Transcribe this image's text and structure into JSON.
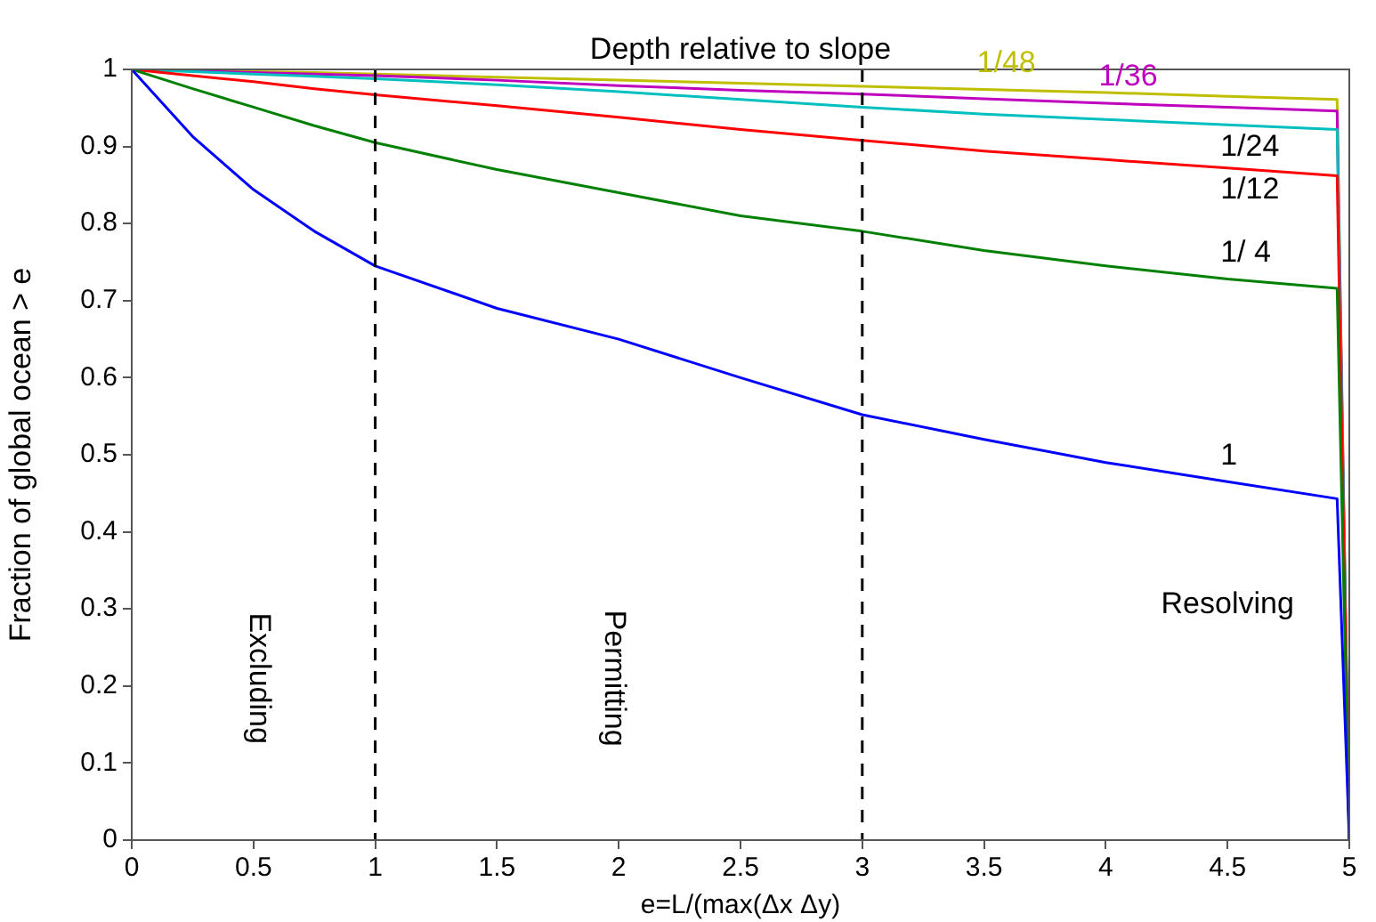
{
  "chart_data": {
    "type": "line",
    "title": "Depth relative to slope",
    "xlabel": "e=L/(max(Δx Δy)",
    "ylabel": "Fraction of global ocean > e",
    "x": [
      0,
      0.25,
      0.5,
      0.75,
      1,
      1.5,
      2,
      2.5,
      3,
      3.5,
      4,
      4.5,
      4.95,
      5
    ],
    "series": [
      {
        "name": "1",
        "color": "#0000ff",
        "values": [
          1,
          0.913,
          0.844,
          0.79,
          0.745,
          0.69,
          0.65,
          0.6,
          0.552,
          0.52,
          0.49,
          0.465,
          0.443,
          0
        ]
      },
      {
        "name": "1/ 4",
        "color": "#008000",
        "values": [
          1,
          0.975,
          0.951,
          0.927,
          0.905,
          0.87,
          0.84,
          0.81,
          0.79,
          0.765,
          0.745,
          0.728,
          0.716,
          0
        ]
      },
      {
        "name": "1/12",
        "color": "#ff0000",
        "values": [
          1,
          0.992,
          0.984,
          0.975,
          0.967,
          0.953,
          0.938,
          0.922,
          0.908,
          0.894,
          0.883,
          0.872,
          0.862,
          0
        ]
      },
      {
        "name": "1/24",
        "color": "#00bfbf",
        "values": [
          1,
          0.997,
          0.994,
          0.991,
          0.988,
          0.98,
          0.971,
          0.961,
          0.951,
          0.942,
          0.935,
          0.928,
          0.922,
          0
        ]
      },
      {
        "name": "1/36",
        "color": "#bf00bf",
        "values": [
          1,
          0.998,
          0.996,
          0.994,
          0.992,
          0.986,
          0.979,
          0.973,
          0.968,
          0.962,
          0.956,
          0.951,
          0.946,
          0
        ]
      },
      {
        "name": "1/48",
        "color": "#bfbf00",
        "values": [
          1,
          0.999,
          0.997,
          0.996,
          0.994,
          0.99,
          0.986,
          0.982,
          0.978,
          0.974,
          0.97,
          0.965,
          0.961,
          0
        ]
      }
    ],
    "xlim": [
      0,
      5
    ],
    "xticks": [
      0,
      0.5,
      1,
      1.5,
      2,
      2.5,
      3,
      3.5,
      4,
      4.5,
      5
    ],
    "ylim": [
      0,
      1
    ],
    "yticks": [
      0,
      0.1,
      0.2,
      0.3,
      0.4,
      0.5,
      0.6,
      0.7,
      0.8,
      0.9,
      1
    ],
    "ref_lines": [
      {
        "axis": "x",
        "value": 1,
        "color": "#000000",
        "line_style": "dashed"
      },
      {
        "axis": "x",
        "value": 3,
        "color": "#000000",
        "line_style": "dashed"
      }
    ],
    "annotations": [
      "Excluding",
      "Permitting",
      "Resolving"
    ],
    "grid": false,
    "legend": false,
    "marker": "none",
    "line_style": "solid"
  }
}
